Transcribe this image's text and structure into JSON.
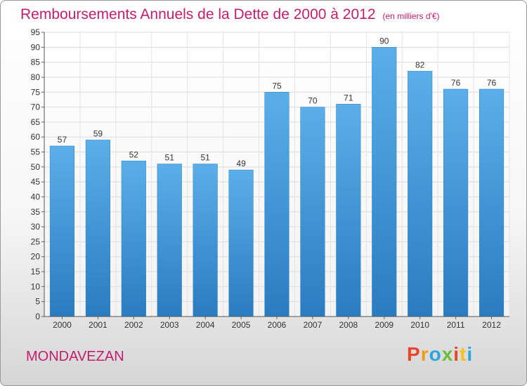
{
  "chart_data": {
    "type": "bar",
    "title": "Remboursements Annuels de la Dette de 2000 à 2012",
    "unit_note": "(en milliers d'€)",
    "categories": [
      "2000",
      "2001",
      "2002",
      "2003",
      "2004",
      "2005",
      "2006",
      "2007",
      "2008",
      "2009",
      "2010",
      "2011",
      "2012"
    ],
    "values": [
      57,
      59,
      52,
      51,
      51,
      49,
      75,
      70,
      71,
      90,
      82,
      76,
      76
    ],
    "ylim": [
      0,
      95
    ],
    "yticks": [
      0,
      5,
      10,
      15,
      20,
      25,
      30,
      35,
      40,
      45,
      50,
      55,
      60,
      65,
      70,
      75,
      80,
      85,
      90,
      95
    ],
    "grid": true,
    "legend": "none",
    "colors": {
      "bar_top": "#5aafe9",
      "bar_bottom": "#2a7cc0",
      "title": "#c21e6e"
    }
  },
  "footer": {
    "town": "MONDAVEZAN",
    "logo": "Proxiti"
  },
  "logo_colors": [
    "#e8452b",
    "#f29a1f",
    "#2aa6d9",
    "#6bbd3a",
    "#e8452b",
    "#f2c21f",
    "#2aa6d9"
  ]
}
